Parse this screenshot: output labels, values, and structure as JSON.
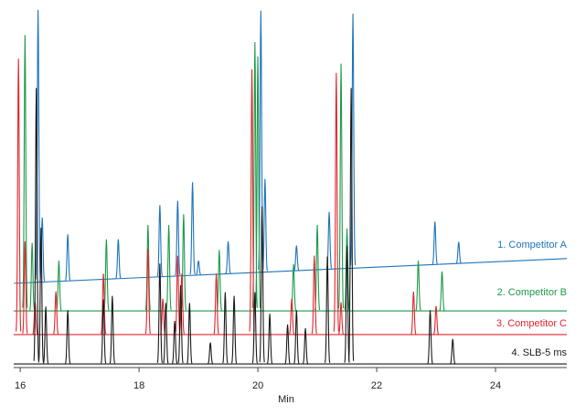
{
  "chart_data": {
    "type": "chromatogram",
    "x_label": "Min",
    "xlim": [
      15.89,
      25.2
    ],
    "xticks": [
      16,
      18,
      20,
      22,
      24
    ],
    "ylim": [
      0,
      100
    ],
    "series": [
      {
        "name": "1. Competitor A",
        "color": "#1f74bb",
        "baseline": [
          23.5,
          30.4
        ],
        "x": [
          16.3,
          16.37,
          16.8,
          17.65,
          18.35,
          18.65,
          18.9,
          19.0,
          19.5,
          20.05,
          20.12,
          20.65,
          21.2,
          21.6,
          22.98,
          23.38
        ],
        "values": [
          76,
          18,
          13,
          11,
          20,
          21,
          26,
          4,
          9,
          73,
          26,
          7,
          16,
          71,
          12,
          6
        ]
      },
      {
        "name": "2. Competitor B",
        "color": "#1e9a4a",
        "baseline": [
          15.8,
          15.8
        ],
        "x": [
          16.08,
          16.2,
          16.65,
          17.45,
          18.15,
          18.5,
          18.75,
          19.35,
          19.95,
          20.0,
          20.6,
          21.0,
          21.4,
          21.5,
          22.7,
          23.1
        ],
        "values": [
          77,
          19,
          14,
          20,
          24,
          24,
          27,
          17,
          75,
          71,
          13,
          24,
          69,
          23,
          14,
          11
        ]
      },
      {
        "name": "3. Competitor C",
        "color": "#e0262f",
        "baseline": [
          9.2,
          9.2
        ],
        "x": [
          15.97,
          16.08,
          16.25,
          16.6,
          17.4,
          18.15,
          18.4,
          18.65,
          18.72,
          19.3,
          19.9,
          20.57,
          20.95,
          21.32,
          21.4,
          22.62,
          23.0
        ],
        "values": [
          77,
          26,
          9,
          12,
          17,
          24,
          10,
          22,
          17,
          17,
          74,
          10,
          22,
          73,
          9,
          12,
          8
        ]
      },
      {
        "name": "4. SLB-5 ms",
        "color": "#1a1a1a",
        "baseline": [
          1,
          1
        ],
        "x": [
          16.27,
          16.35,
          16.43,
          16.8,
          17.4,
          17.55,
          18.35,
          18.45,
          18.6,
          18.7,
          18.85,
          19.2,
          19.45,
          19.6,
          19.95,
          20.07,
          20.2,
          20.5,
          20.65,
          20.8,
          21.17,
          21.5,
          21.57,
          22.9,
          23.28
        ],
        "values": [
          77,
          38,
          16,
          15,
          18,
          19,
          28,
          17,
          12,
          22,
          17,
          6,
          20,
          19,
          20,
          44,
          14,
          11,
          15,
          10,
          30,
          33,
          77,
          15,
          7
        ]
      }
    ]
  }
}
